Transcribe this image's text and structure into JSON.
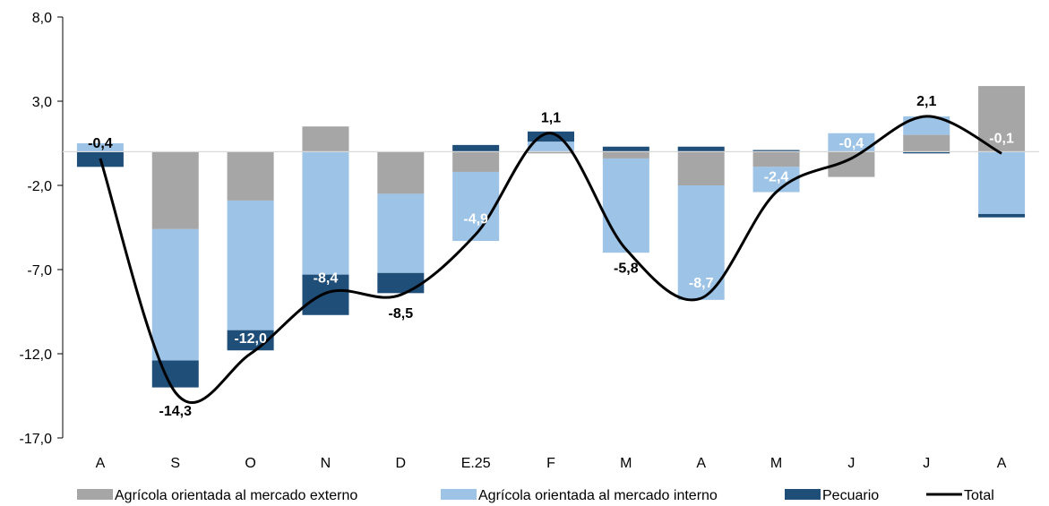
{
  "chart_data": {
    "type": "bar",
    "stacked": true,
    "categories": [
      "A",
      "S",
      "O",
      "N",
      "D",
      "E.25",
      "F",
      "M",
      "A",
      "M",
      "J",
      "J",
      "A"
    ],
    "ylim": [
      -17.0,
      8.0
    ],
    "yticks": [
      8.0,
      3.0,
      -2.0,
      -7.0,
      -12.0,
      -17.0
    ],
    "ytick_labels": [
      "8,0",
      "3,0",
      "-2,0",
      "-7,0",
      "-12,0",
      "-17,0"
    ],
    "series": [
      {
        "name": "Agrícola orientada al mercado externo",
        "color": "#a6a6a6",
        "kind": "bar",
        "values": [
          0.0,
          -4.6,
          -2.9,
          1.5,
          -2.5,
          -1.2,
          -0.1,
          -0.4,
          -2.0,
          -0.9,
          -1.5,
          1.0,
          3.9
        ]
      },
      {
        "name": "Agrícola orientada al mercado interno",
        "color": "#9dc3e6",
        "kind": "bar",
        "values": [
          0.5,
          -7.8,
          -7.7,
          -7.3,
          -4.7,
          -4.1,
          0.6,
          -5.6,
          -6.8,
          -1.5,
          1.1,
          1.1,
          -3.7
        ]
      },
      {
        "name": "Pecuario",
        "color": "#1f4e79",
        "kind": "bar",
        "values": [
          -0.9,
          -1.6,
          -1.2,
          -2.4,
          -1.2,
          0.4,
          0.6,
          0.3,
          0.3,
          0.1,
          0.0,
          -0.1,
          -0.2
        ]
      },
      {
        "name": "Total",
        "color": "#000000",
        "kind": "line",
        "values": [
          -0.4,
          -14.3,
          -12.0,
          -8.4,
          -8.5,
          -4.9,
          1.1,
          -5.8,
          -8.7,
          -2.4,
          -0.4,
          2.1,
          -0.1
        ]
      }
    ],
    "data_labels": [
      "-0,4",
      "-14,3",
      "-12,0",
      "-8,4",
      "-8,5",
      "-4,9",
      "1,1",
      "-5,8",
      "-8,7",
      "-2,4",
      "-0,4",
      "2,1",
      "-0,1"
    ],
    "data_label_colors": [
      "#000000",
      "#000000",
      "#ffffff",
      "#ffffff",
      "#000000",
      "#ffffff",
      "#000000",
      "#000000",
      "#ffffff",
      "#ffffff",
      "#ffffff",
      "#000000",
      "#ffffff"
    ],
    "grid": false,
    "legend_position": "bottom"
  }
}
